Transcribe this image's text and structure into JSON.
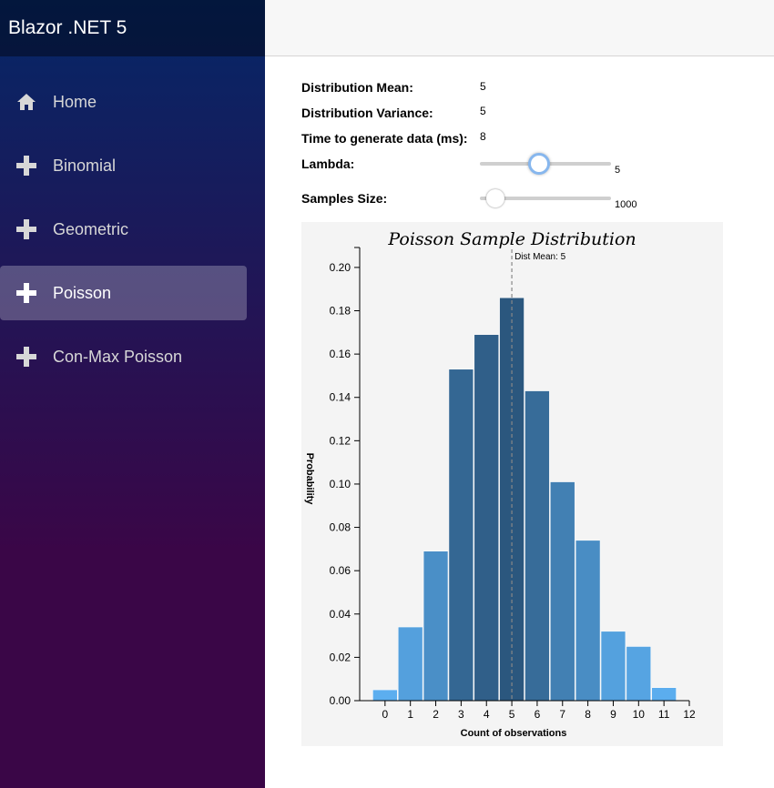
{
  "sidebar": {
    "brand": "Blazor .NET 5",
    "items": [
      {
        "label": "Home",
        "icon": "home-icon",
        "active": false
      },
      {
        "label": "Binomial",
        "icon": "plus-icon",
        "active": false
      },
      {
        "label": "Geometric",
        "icon": "plus-icon",
        "active": false
      },
      {
        "label": "Poisson",
        "icon": "plus-icon",
        "active": true
      },
      {
        "label": "Con-Max Poisson",
        "icon": "plus-icon",
        "active": false
      }
    ]
  },
  "stats": {
    "mean_label": "Distribution Mean:",
    "mean_value": "5",
    "variance_label": "Distribution Variance:",
    "variance_value": "5",
    "time_label": "Time to generate data (ms):",
    "time_value": "8",
    "lambda_label": "Lambda:",
    "lambda_value": "5",
    "lambda_fraction": 0.45,
    "samples_label": "Samples Size:",
    "samples_value": "1000",
    "samples_fraction": 0.12
  },
  "colors": {
    "bar_low": "#5db0f2",
    "bar_high": "#2b577e",
    "mean_line": "#888888"
  },
  "chart_data": {
    "type": "bar",
    "title": "Poisson Sample Distribution",
    "xlabel": "Count of observations",
    "ylabel": "Probability",
    "categories": [
      0,
      1,
      2,
      3,
      4,
      5,
      6,
      7,
      8,
      9,
      10,
      11
    ],
    "values": [
      0.005,
      0.034,
      0.069,
      0.153,
      0.169,
      0.186,
      0.143,
      0.101,
      0.074,
      0.032,
      0.025,
      0.006
    ],
    "xlim": [
      -1,
      12
    ],
    "ylim": [
      0,
      0.205
    ],
    "xticks": [
      "0",
      "1",
      "2",
      "3",
      "4",
      "5",
      "6",
      "7",
      "8",
      "9",
      "10",
      "11",
      "12"
    ],
    "yticks": [
      "0.00",
      "0.02",
      "0.04",
      "0.06",
      "0.08",
      "0.10",
      "0.12",
      "0.14",
      "0.16",
      "0.18",
      "0.20"
    ],
    "annotation": {
      "label": "Dist Mean: 5",
      "x": 5
    }
  }
}
